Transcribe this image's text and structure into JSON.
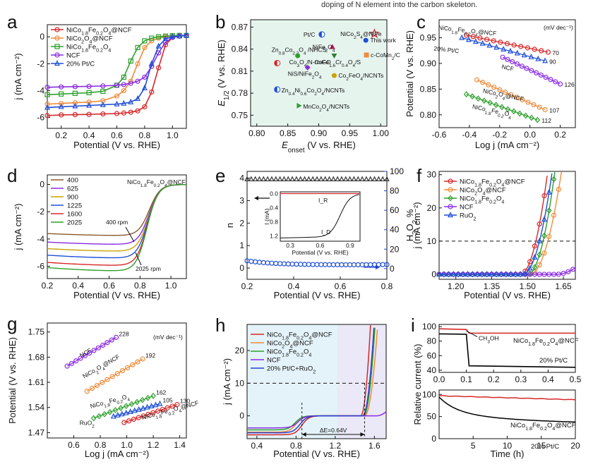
{
  "header_note": "doping of N element into the carbon skeleton.",
  "colors": {
    "red": "#d62728",
    "orange": "#f08b3a",
    "green": "#2ca02c",
    "purple": "#8a2be2",
    "blue": "#1f4fd6",
    "gold": "#c9a400",
    "brown": "#8b5a2b",
    "darkgreen": "#2e7d32",
    "magenta": "#c2185b",
    "ruo2": "#2d3fd0"
  },
  "chart_data": [
    {
      "id": "a",
      "letter": "a",
      "type": "line",
      "xlabel": "Potential (V vs. RHE)",
      "ylabel": "j (mA cm⁻²)",
      "xlim": [
        0.1,
        1.1
      ],
      "ylim": [
        -6.8,
        0.9
      ],
      "xticks": [
        0.2,
        0.4,
        0.6,
        0.8,
        1.0
      ],
      "yticks": [
        0,
        -2,
        -4,
        -6
      ],
      "x": [
        0.1,
        0.2,
        0.3,
        0.4,
        0.5,
        0.6,
        0.65,
        0.7,
        0.75,
        0.8,
        0.85,
        0.9,
        0.95,
        1.0,
        1.05,
        1.1
      ],
      "series": [
        {
          "name": "NiCo1.8Fe0.2O4@NCF",
          "color": "red",
          "marker": "o",
          "values": [
            -5.85,
            -5.8,
            -5.78,
            -5.76,
            -5.73,
            -5.7,
            -5.66,
            -5.6,
            -5.5,
            -5.2,
            -4.1,
            -2.3,
            -0.6,
            -0.05,
            0.05,
            0.1
          ]
        },
        {
          "name": "NiCo2O4@NCF",
          "color": "orange",
          "marker": "o",
          "values": [
            -5.0,
            -4.95,
            -4.9,
            -4.85,
            -4.75,
            -4.4,
            -4.0,
            -3.3,
            -2.0,
            -0.8,
            -0.3,
            -0.1,
            0.0,
            0.05,
            0.08,
            0.1
          ]
        },
        {
          "name": "NiCo1.8Fe0.2O4",
          "color": "green",
          "marker": "s",
          "values": [
            -4.3,
            -4.25,
            -4.2,
            -4.15,
            -4.05,
            -3.6,
            -3.0,
            -1.8,
            -0.8,
            -0.3,
            -0.1,
            0.0,
            0.05,
            0.08,
            0.1,
            0.1
          ]
        },
        {
          "name": "NCF",
          "color": "purple",
          "marker": "o",
          "values": [
            -3.75,
            -3.72,
            -3.7,
            -3.68,
            -3.65,
            -3.6,
            -3.55,
            -3.45,
            -3.3,
            -3.0,
            -2.2,
            -1.2,
            -0.4,
            -0.05,
            0.05,
            0.1
          ]
        },
        {
          "name": "20% Pt/C",
          "color": "blue",
          "marker": "^",
          "values": [
            -5.25,
            -5.2,
            -5.15,
            -5.1,
            -5.05,
            -5.0,
            -4.95,
            -4.85,
            -4.6,
            -3.8,
            -2.0,
            -0.7,
            -0.15,
            0.0,
            0.05,
            0.1
          ]
        }
      ]
    },
    {
      "id": "b",
      "letter": "b",
      "type": "scatter",
      "xlabel": "E_onset (V vs. RHE)",
      "ylabel": "E_1/2 (V vs. RHE)",
      "xlim": [
        0.79,
        1.01
      ],
      "ylim": [
        0.735,
        0.88
      ],
      "xticks": [
        0.8,
        0.85,
        0.9,
        0.95,
        1.0
      ],
      "yticks": [
        0.75,
        0.78,
        0.81,
        0.84,
        0.87
      ],
      "points": [
        {
          "label": "This work",
          "x": 0.99,
          "y": 0.861,
          "color": "red",
          "marker": "star"
        },
        {
          "label": "Pt/C",
          "x": 0.905,
          "y": 0.86,
          "color": "blue",
          "marker": "half"
        },
        {
          "label": "NiFe2O4",
          "x": 0.922,
          "y": 0.843,
          "color": "magenta",
          "marker": "tri"
        },
        {
          "label": "NiCo2S4@NiFe",
          "x": 0.976,
          "y": 0.852,
          "color": "blue",
          "marker": "circ"
        },
        {
          "label": "Zn0.8Co2.2O4 /NHCS",
          "x": 0.833,
          "y": 0.821,
          "color": "red",
          "marker": "half"
        },
        {
          "label": "Co3O4/N-rmGO",
          "x": 0.866,
          "y": 0.831,
          "color": "green",
          "marker": "circ"
        },
        {
          "label": "CoFe1.6Cr0.4O4/S",
          "x": 0.925,
          "y": 0.831,
          "color": "darkgreen",
          "marker": "vtri"
        },
        {
          "label": "c-CoMn2/C",
          "x": 0.977,
          "y": 0.832,
          "color": "orange",
          "marker": "sq"
        },
        {
          "label": "NiS/NiFe2O4",
          "x": 0.882,
          "y": 0.815,
          "color": "purple",
          "marker": "diam"
        },
        {
          "label": "Co2FeO4/NCNTs",
          "x": 0.925,
          "y": 0.804,
          "color": "gold",
          "marker": "circ"
        },
        {
          "label": "Zn0.4Ni0.6Co2O4/NCNTs",
          "x": 0.833,
          "y": 0.785,
          "color": "blue",
          "marker": "half"
        },
        {
          "label": "MnCo2O4/NCNTs",
          "x": 0.868,
          "y": 0.763,
          "color": "green",
          "marker": "lflag"
        }
      ]
    },
    {
      "id": "c",
      "letter": "c",
      "type": "line",
      "xlabel": "Log j (mA cm⁻²)",
      "ylabel": "Potential (V vs. RHE)",
      "xlim": [
        -0.6,
        0.3
      ],
      "ylim": [
        0.775,
        0.985
      ],
      "xticks": [
        -0.6,
        -0.4,
        -0.2,
        0.0,
        0.2
      ],
      "yticks": [
        0.8,
        0.85,
        0.9,
        0.95
      ],
      "unit_note": "(mV dec⁻¹)",
      "series": [
        {
          "name": "NiCo1.8Fe0.2O4@NCF",
          "color": "red",
          "marker": "o",
          "x": [
            -0.42,
            0.12
          ],
          "y": [
            0.955,
            0.922
          ],
          "slope": "70"
        },
        {
          "name": "20% Pt/C",
          "color": "blue",
          "marker": "^",
          "x": [
            -0.45,
            0.1
          ],
          "y": [
            0.95,
            0.905
          ],
          "slope": "90"
        },
        {
          "name": "NCF",
          "color": "purple",
          "marker": "o",
          "x": [
            -0.18,
            0.2
          ],
          "y": [
            0.912,
            0.86
          ],
          "slope": "126"
        },
        {
          "name": "NiCo2O4@NCF",
          "color": "orange",
          "marker": "o",
          "x": [
            -0.35,
            0.1
          ],
          "y": [
            0.868,
            0.81
          ],
          "slope": "107"
        },
        {
          "name": "NiCo1.8Fe0.2O4",
          "color": "green",
          "marker": "d",
          "x": [
            -0.42,
            0.05
          ],
          "y": [
            0.84,
            0.79
          ],
          "slope": "112"
        }
      ]
    },
    {
      "id": "d",
      "letter": "d",
      "type": "line",
      "xlabel": "Potential (V vs. RHE)",
      "ylabel": "j (mA cm⁻²)",
      "title": "NiCo1.8Fe0.2O4@NCF",
      "xlim": [
        0.2,
        1.1
      ],
      "ylim": [
        -6.9,
        0.7
      ],
      "xticks": [
        0.2,
        0.4,
        0.6,
        0.8,
        1.0
      ],
      "yticks": [
        0,
        -2,
        -4,
        -6
      ],
      "annotations": [
        "400 rpm",
        "2025 rpm"
      ],
      "series": [
        {
          "name": "400",
          "color": "brown",
          "limit": -3.75
        },
        {
          "name": "625",
          "color": "purple",
          "limit": -4.4
        },
        {
          "name": "900",
          "color": "gold",
          "limit": -4.9
        },
        {
          "name": "1225",
          "color": "blue",
          "limit": -5.4
        },
        {
          "name": "1600",
          "color": "red",
          "limit": -5.95
        },
        {
          "name": "2025",
          "color": "green",
          "limit": -6.35
        }
      ]
    },
    {
      "id": "e",
      "letter": "e",
      "type": "line",
      "xlabel": "Potential (V vs. RHE)",
      "ylabel": "n",
      "y2label": "H2O2 %",
      "xlim": [
        0.2,
        0.8
      ],
      "ylim": [
        -0.5,
        4.3
      ],
      "xticks": [
        0.2,
        0.4,
        0.6,
        0.8
      ],
      "yticks": [
        0,
        1,
        2,
        3,
        4
      ],
      "y2ticks": [
        0,
        20,
        40,
        60,
        80,
        100
      ],
      "n_series": {
        "x": [
          0.2,
          0.8
        ],
        "values": [
          3.95,
          3.93
        ],
        "color": "#333333"
      },
      "h2o2_series": {
        "x": [
          0.2,
          0.3,
          0.4,
          0.5,
          0.6,
          0.7,
          0.8
        ],
        "values": [
          8,
          6.5,
          5,
          4.2,
          4,
          4,
          4.2
        ],
        "color": "blue"
      },
      "inset": {
        "xlabel": "Potential (V vs. RHE)",
        "ylabel": "I (mA)",
        "xticks": [
          0.3,
          0.6,
          0.9
        ],
        "yticks": [
          0.0,
          0.4,
          0.8,
          1.2
        ],
        "labels": [
          "I_R",
          "I_D"
        ]
      }
    },
    {
      "id": "f",
      "letter": "f",
      "type": "line",
      "xlabel": "Potential (V vs. RHE)",
      "ylabel": "j (mA cm⁻²)",
      "xlim": [
        1.13,
        1.7
      ],
      "ylim": [
        -1.5,
        31
      ],
      "xticks": [
        1.2,
        1.35,
        1.5,
        1.65
      ],
      "yticks": [
        0,
        10,
        20,
        30
      ],
      "hline": 10,
      "series": [
        {
          "name": "NiCo1.8Fe0.2O4@NCF",
          "color": "red",
          "marker": "o",
          "onset": 1.47,
          "e10": 1.535
        },
        {
          "name": "NiCo2O4@NCF",
          "color": "orange",
          "marker": "o",
          "onset": 1.51,
          "e10": 1.585
        },
        {
          "name": "NiCo1.8Fe0.2O4",
          "color": "green",
          "marker": "d",
          "onset": 1.5,
          "e10": 1.565
        },
        {
          "name": "NCF",
          "color": "purple",
          "marker": "o",
          "onset": 1.62,
          "e10": 1.8
        },
        {
          "name": "RuO2",
          "color": "blue",
          "marker": "^",
          "onset": 1.48,
          "e10": 1.55
        }
      ]
    },
    {
      "id": "g",
      "letter": "g",
      "type": "line",
      "xlabel": "Log j (mA cm⁻²)",
      "ylabel": "Potential (V vs. RHE)",
      "unit_note": "(mV dec⁻¹)",
      "xlim": [
        0.4,
        1.45
      ],
      "ylim": [
        1.455,
        1.775
      ],
      "xticks": [
        0.6,
        0.8,
        1.0,
        1.2,
        1.4
      ],
      "yticks": [
        1.47,
        1.54,
        1.61,
        1.68,
        1.75
      ],
      "series": [
        {
          "name": "NCF",
          "color": "purple",
          "marker": "o",
          "x": [
            0.55,
            0.92
          ],
          "y": [
            1.655,
            1.735
          ],
          "slope": "228"
        },
        {
          "name": "NiCo2O4@NCF",
          "color": "orange",
          "marker": "o",
          "x": [
            0.7,
            1.12
          ],
          "y": [
            1.585,
            1.675
          ],
          "slope": "192"
        },
        {
          "name": "NiCo1.8Fe0.2O4",
          "color": "green",
          "marker": "d",
          "x": [
            0.75,
            1.2
          ],
          "y": [
            1.51,
            1.572
          ],
          "slope": "162"
        },
        {
          "name": "RuO2",
          "color": "blue",
          "marker": "^",
          "x": [
            0.9,
            1.25
          ],
          "y": [
            1.515,
            1.55
          ],
          "slope": "105"
        },
        {
          "name": "NiCo1.8Fe0.2O4@NCF",
          "color": "red",
          "marker": "o",
          "x": [
            0.98,
            1.38
          ],
          "y": [
            1.498,
            1.548
          ],
          "slope": "130"
        }
      ]
    },
    {
      "id": "h",
      "letter": "h",
      "type": "line",
      "xlabel": "Potential (V vs. RHE)",
      "ylabel": "j (mA cm⁻²)",
      "xlim": [
        0.3,
        1.72
      ],
      "ylim": [
        -7,
        28
      ],
      "xticks": [
        0.4,
        0.8,
        1.2,
        1.6
      ],
      "yticks": [
        0,
        10,
        20
      ],
      "hline": 10,
      "delta_e": "ΔE=0.64V",
      "series": [
        {
          "name": "NiCo1.8Fe0.2O4@NCF",
          "color": "red"
        },
        {
          "name": "NiCo2O4@NCF",
          "color": "orange"
        },
        {
          "name": "NiCo1.8Fe0.2O4",
          "color": "green"
        },
        {
          "name": "NCF",
          "color": "purple"
        },
        {
          "name": "20% Pt/C+RuO2",
          "color": "ruo2"
        }
      ]
    },
    {
      "id": "i",
      "letter": "i",
      "type": "line",
      "ylabel": "Relative current (%)",
      "xlabel": "Time (h)",
      "top": {
        "xlim": [
          0,
          0.5
        ],
        "ylim": [
          37,
          103
        ],
        "xticks": [
          0.0,
          0.1,
          0.2,
          0.3,
          0.4,
          0.5
        ],
        "yticks": [
          40,
          60,
          80,
          100
        ],
        "ch3oh": "CH3OH",
        "series": [
          {
            "name": "NiCo1.8Fe0.2O4@NCF",
            "color": "red",
            "values": [
              [
                0,
                97
              ],
              [
                0.1,
                96
              ],
              [
                0.11,
                91
              ],
              [
                0.5,
                91
              ]
            ]
          },
          {
            "name": "20% Pt/C",
            "color": "black",
            "values": [
              [
                0,
                90
              ],
              [
                0.1,
                89.5
              ],
              [
                0.11,
                46
              ],
              [
                0.5,
                44
              ]
            ]
          }
        ]
      },
      "bottom": {
        "xlim": [
          0,
          20
        ],
        "ylim": [
          0,
          110
        ],
        "xticks": [
          5,
          10,
          15,
          20
        ],
        "yticks": [
          0,
          50,
          100
        ],
        "series": [
          {
            "name": "NiCo1.8Fe0.2O4@NCF",
            "color": "red",
            "values": [
              [
                0,
                97
              ],
              [
                5,
                94
              ],
              [
                10,
                92
              ],
              [
                15,
                90
              ],
              [
                20,
                88
              ]
            ]
          },
          {
            "name": "20% Pt/C",
            "color": "black",
            "values": [
              [
                0,
                95
              ],
              [
                1,
                72
              ],
              [
                3,
                60
              ],
              [
                6,
                52
              ],
              [
                10,
                45
              ],
              [
                15,
                39
              ],
              [
                20,
                33
              ]
            ]
          }
        ]
      }
    }
  ]
}
